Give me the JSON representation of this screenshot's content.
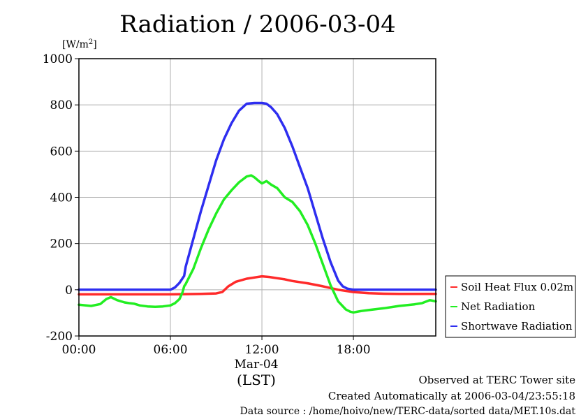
{
  "chart_data": {
    "type": "line",
    "title": "Radiation / 2006-03-04",
    "ylabel": "[W/m",
    "ylabel_sup": "2",
    "ylabel_close": "]",
    "xlabel": "(LST)",
    "x_date_label": "Mar-04",
    "x_ticks": [
      {
        "hour": 0,
        "label": "00:00"
      },
      {
        "hour": 6,
        "label": "06:00"
      },
      {
        "hour": 12,
        "label": "12:00"
      },
      {
        "hour": 18,
        "label": "18:00"
      }
    ],
    "y_ticks": [
      {
        "value": -200,
        "label": "-200"
      },
      {
        "value": 0,
        "label": "0"
      },
      {
        "value": 200,
        "label": "200"
      },
      {
        "value": 400,
        "label": "400"
      },
      {
        "value": 600,
        "label": "600"
      },
      {
        "value": 800,
        "label": "800"
      },
      {
        "value": 1000,
        "label": "1000"
      }
    ],
    "xlim": [
      0,
      23.4
    ],
    "ylim": [
      -200,
      1000
    ],
    "grid": true,
    "legend_position": "right",
    "series": [
      {
        "name": "Soil Heat Flux 0.02m",
        "color": "#ff2a2a",
        "x": [
          0,
          2,
          4,
          6,
          8,
          9,
          9.4,
          9.8,
          10.3,
          11,
          11.5,
          12,
          12.5,
          13,
          13.5,
          14,
          15,
          16,
          17,
          18,
          19,
          20,
          21,
          22,
          23.4
        ],
        "y": [
          -20,
          -20,
          -20,
          -20,
          -18,
          -16,
          -10,
          15,
          35,
          48,
          53,
          58,
          55,
          50,
          45,
          38,
          28,
          15,
          0,
          -10,
          -15,
          -17,
          -18,
          -18,
          -18
        ]
      },
      {
        "name": "Net Radiation",
        "color": "#22ee22",
        "x": [
          0,
          0.8,
          1.4,
          1.8,
          2.1,
          2.5,
          3,
          3.3,
          3.6,
          4,
          4.5,
          5,
          5.5,
          6,
          6.3,
          6.6,
          6.8,
          6.9,
          7.0,
          7.5,
          8,
          8.5,
          9,
          9.5,
          10,
          10.5,
          11,
          11.3,
          11.5,
          11.8,
          12,
          12.3,
          12.6,
          13,
          13.5,
          14,
          14.5,
          15,
          15.5,
          16,
          16.5,
          17,
          17.5,
          17.8,
          18,
          18.5,
          19,
          20,
          21,
          22,
          22.5,
          23,
          23.4
        ],
        "y": [
          -65,
          -70,
          -62,
          -40,
          -32,
          -45,
          -55,
          -58,
          -60,
          -68,
          -72,
          -74,
          -72,
          -68,
          -58,
          -40,
          -10,
          15,
          25,
          90,
          180,
          260,
          330,
          390,
          430,
          465,
          490,
          495,
          487,
          470,
          460,
          470,
          455,
          440,
          400,
          380,
          340,
          280,
          200,
          110,
          20,
          -50,
          -85,
          -95,
          -98,
          -92,
          -88,
          -80,
          -70,
          -63,
          -58,
          -45,
          -50
        ]
      },
      {
        "name": "Shortwave Radiation",
        "color": "#2e2ef0",
        "x": [
          0,
          2,
          4,
          5.5,
          6,
          6.3,
          6.6,
          6.9,
          7.0,
          7.5,
          8,
          8.5,
          9,
          9.5,
          10,
          10.5,
          11,
          11.5,
          12,
          12.3,
          12.6,
          13,
          13.5,
          14,
          14.5,
          15,
          15.5,
          16,
          16.5,
          17,
          17.3,
          17.6,
          18,
          19,
          20,
          21,
          22,
          23.4
        ],
        "y": [
          0,
          0,
          0,
          0,
          0,
          10,
          30,
          60,
          100,
          220,
          340,
          450,
          560,
          650,
          720,
          775,
          805,
          808,
          808,
          805,
          790,
          760,
          700,
          620,
          530,
          440,
          330,
          220,
          120,
          40,
          15,
          5,
          0,
          0,
          0,
          0,
          0,
          0
        ]
      }
    ]
  },
  "footer": {
    "observed": "Observed at TERC Tower site",
    "created": "Created Automatically at 2006-03-04/23:55:18",
    "source": "Data source : /home/hoivo/new/TERC-data/sorted  data/MET.10s.dat"
  }
}
